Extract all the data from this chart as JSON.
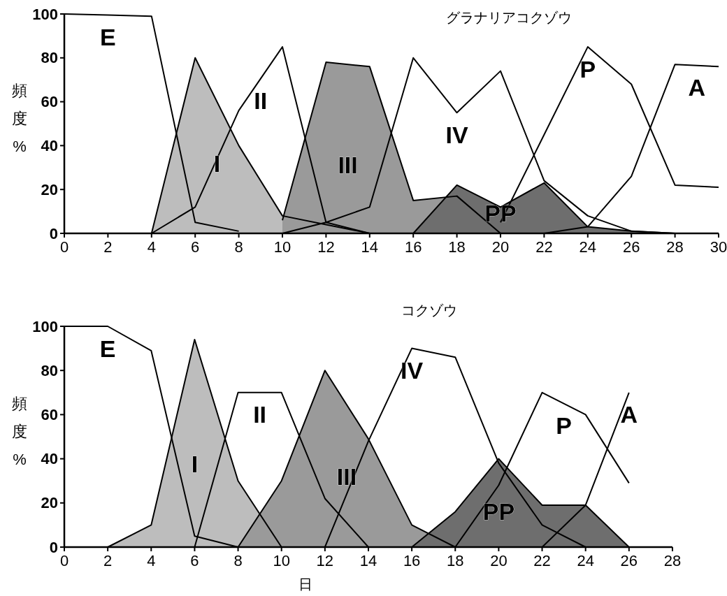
{
  "chart_data": [
    {
      "type": "area",
      "title": "グラナリアコクゾウ",
      "ylabel": "頻度%",
      "xlim": [
        0,
        30
      ],
      "ylim": [
        0,
        100
      ],
      "xticks": [
        0,
        2,
        4,
        6,
        8,
        10,
        12,
        14,
        16,
        18,
        20,
        22,
        24,
        26,
        28,
        30
      ],
      "yticks": [
        0,
        20,
        40,
        60,
        80,
        100
      ],
      "grid": false,
      "legend": false,
      "marker": "none",
      "series": [
        {
          "name": "E",
          "type": "line",
          "color": "#000000",
          "x": [
            0,
            2,
            4,
            6,
            8
          ],
          "values": [
            100,
            99.5,
            99,
            5,
            1
          ]
        },
        {
          "name": "I",
          "color": "#bdbdbd",
          "x": [
            4,
            6,
            8,
            10,
            12,
            14
          ],
          "values": [
            0,
            80,
            40,
            8,
            4,
            0
          ]
        },
        {
          "name": "II",
          "type": "line",
          "color": "#000000",
          "x": [
            4,
            6,
            8,
            10,
            12,
            14
          ],
          "values": [
            0,
            12,
            56,
            85,
            5,
            0
          ]
        },
        {
          "name": "III",
          "color": "#9a9a9a",
          "x": [
            10,
            12,
            14,
            16,
            18,
            20
          ],
          "values": [
            6,
            78,
            76,
            15,
            17,
            0
          ]
        },
        {
          "name": "IV",
          "type": "line",
          "color": "#000000",
          "x": [
            10,
            12,
            14,
            16,
            18,
            20,
            22,
            24,
            26,
            28
          ],
          "values": [
            0,
            5,
            12,
            80,
            55,
            74,
            24,
            8,
            1,
            0
          ]
        },
        {
          "name": "PP",
          "color": "#6e6e6e",
          "x": [
            16,
            18,
            20,
            22,
            24,
            26,
            28
          ],
          "values": [
            0,
            22,
            12,
            23,
            3,
            1,
            0
          ]
        },
        {
          "name": "P",
          "type": "line",
          "color": "#000000",
          "x": [
            20,
            22,
            24,
            26,
            28,
            30
          ],
          "values": [
            5,
            45,
            85,
            68,
            22,
            21
          ]
        },
        {
          "name": "A",
          "type": "line",
          "color": "#000000",
          "x": [
            22,
            24,
            26,
            28,
            30
          ],
          "values": [
            0,
            3,
            26,
            77,
            76
          ]
        }
      ]
    },
    {
      "type": "area",
      "title": "コクゾウ",
      "xlabel": "日",
      "ylabel": "頻度%",
      "xlim": [
        0,
        28
      ],
      "ylim": [
        0,
        100
      ],
      "xticks": [
        0,
        2,
        4,
        6,
        8,
        10,
        12,
        14,
        16,
        18,
        20,
        22,
        24,
        26,
        28
      ],
      "yticks": [
        0,
        20,
        40,
        60,
        80,
        100
      ],
      "grid": false,
      "legend": false,
      "marker": "none",
      "series": [
        {
          "name": "E",
          "type": "line",
          "color": "#000000",
          "x": [
            0,
            2,
            4,
            6,
            8
          ],
          "values": [
            100,
            100,
            89,
            5,
            0
          ]
        },
        {
          "name": "I",
          "color": "#bdbdbd",
          "x": [
            2,
            4,
            6,
            8,
            10
          ],
          "values": [
            0,
            10,
            94,
            30,
            0
          ]
        },
        {
          "name": "II",
          "type": "line",
          "color": "#000000",
          "x": [
            6,
            8,
            10,
            12,
            14
          ],
          "values": [
            0,
            70,
            70,
            22,
            0
          ]
        },
        {
          "name": "III",
          "color": "#9a9a9a",
          "x": [
            8,
            10,
            12,
            14,
            16,
            18
          ],
          "values": [
            0,
            30,
            80,
            49,
            10,
            0
          ]
        },
        {
          "name": "IV",
          "type": "line",
          "color": "#000000",
          "x": [
            12,
            14,
            16,
            18,
            20,
            22,
            24
          ],
          "values": [
            0,
            48,
            90,
            86,
            38,
            10,
            0
          ]
        },
        {
          "name": "PP",
          "color": "#6e6e6e",
          "x": [
            16,
            18,
            20,
            22,
            24,
            26
          ],
          "values": [
            0,
            16,
            40,
            19,
            19,
            0
          ]
        },
        {
          "name": "P",
          "type": "line",
          "color": "#000000",
          "x": [
            18,
            20,
            22,
            24,
            26
          ],
          "values": [
            0,
            28,
            70,
            60,
            29
          ]
        },
        {
          "name": "A",
          "type": "line",
          "color": "#000000",
          "x": [
            22,
            24,
            26
          ],
          "values": [
            0,
            19,
            70
          ]
        }
      ]
    }
  ]
}
